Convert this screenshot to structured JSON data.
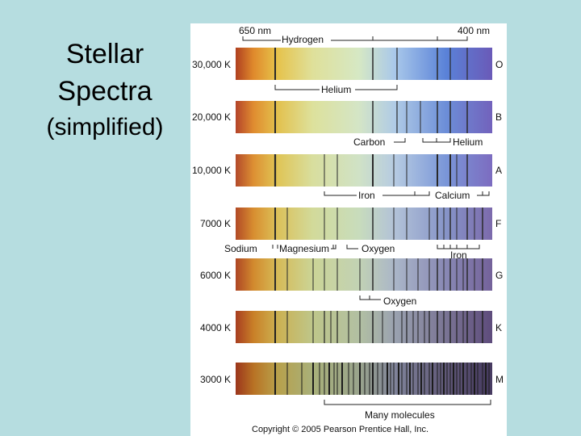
{
  "slide": {
    "title_line1": "Stellar",
    "title_line2": "Spectra",
    "subtitle": "(simplified)"
  },
  "figure": {
    "wavelength_left": "650 nm",
    "wavelength_right": "400 nm",
    "copyright": "Copyright © 2005 Pearson Prentice Hall, Inc.",
    "spectra": [
      {
        "temp": "30,000 K",
        "class": "O"
      },
      {
        "temp": "20,000 K",
        "class": "B"
      },
      {
        "temp": "10,000 K",
        "class": "A"
      },
      {
        "temp": "7000 K",
        "class": "F"
      },
      {
        "temp": "6000 K",
        "class": "G"
      },
      {
        "temp": "4000 K",
        "class": "K"
      },
      {
        "temp": "3000 K",
        "class": "M"
      }
    ],
    "annotations": {
      "hydrogen": "Hydrogen",
      "helium_top": "Helium",
      "carbon": "Carbon",
      "helium_b": "Helium",
      "iron_a": "Iron",
      "calcium": "Calcium",
      "sodium": "Sodium",
      "magnesium": "Magnesium",
      "oxygen_f": "Oxygen",
      "iron_f": "Iron",
      "oxygen_g": "Oxygen",
      "many_molecules": "Many molecules"
    }
  }
}
